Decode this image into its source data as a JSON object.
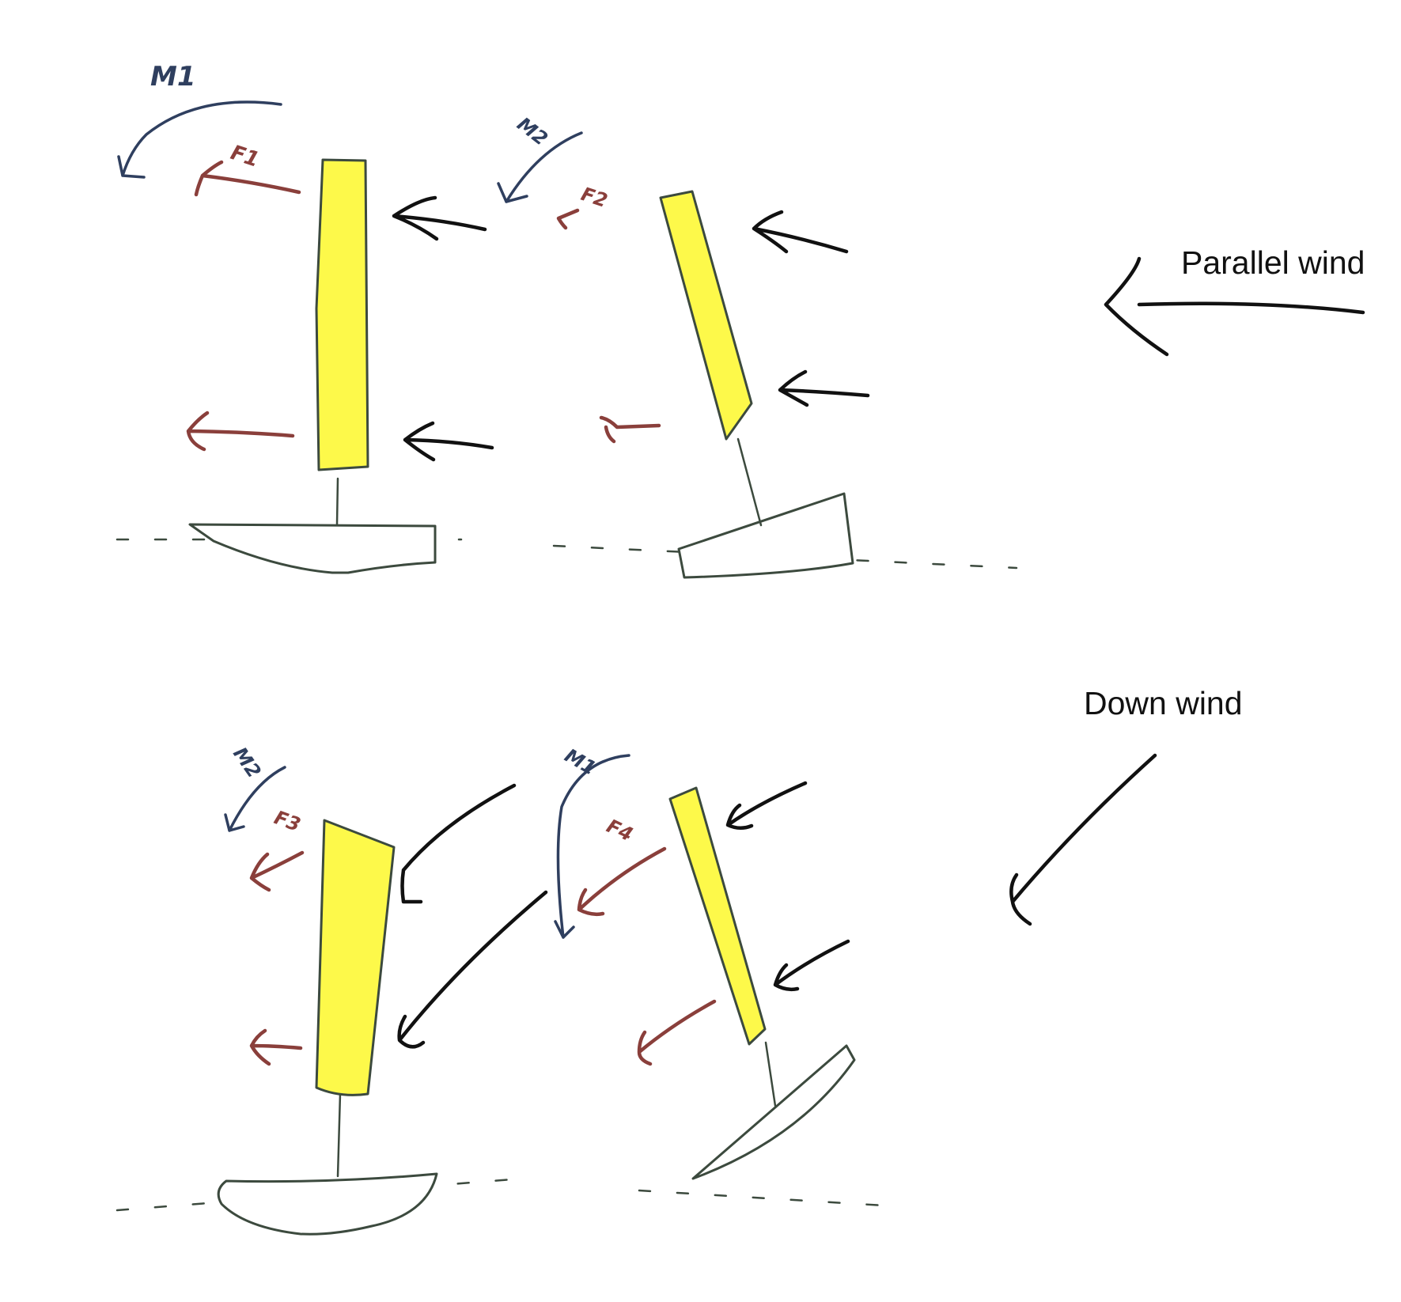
{
  "labels": {
    "parallel_wind": "Parallel wind",
    "down_wind": "Down wind"
  },
  "handwritten": {
    "M1": "M1",
    "M2_top": "M2",
    "M2_bottom": "M2",
    "M1_bottom": "M1",
    "F1_top": "F1",
    "F2_top": "F2",
    "F3_bottom": "F3",
    "F4_bottom": "F4"
  },
  "colors": {
    "sail_fill": "#fdf94a",
    "outline": "#3c4a3e",
    "wind_arrow": "#111111",
    "force_arrow": "#8a3f3b",
    "moment_arrow": "#2f3f5f"
  },
  "icons": {
    "wind": "wind-arrow-icon",
    "force": "force-arrow-icon",
    "moment": "moment-arrow-icon"
  }
}
